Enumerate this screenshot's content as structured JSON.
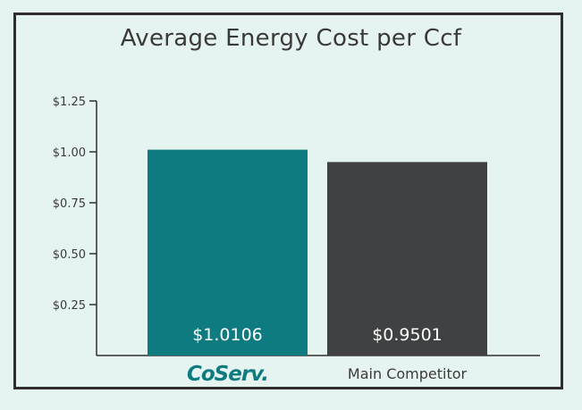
{
  "chart_data": {
    "type": "bar",
    "title": "Average Energy Cost per Ccf",
    "categories": [
      "CoServ.",
      "Main Competitor"
    ],
    "values": [
      1.0106,
      0.9501
    ],
    "value_labels": [
      "$1.0106",
      "$0.9501"
    ],
    "ylim": [
      0,
      1.25
    ],
    "yticks": [
      0.25,
      0.5,
      0.75,
      1.0,
      1.25
    ],
    "ytick_labels": [
      "$0.25",
      "$0.50",
      "$0.75",
      "$1.00",
      "$1.25"
    ],
    "grid": false,
    "colors": [
      "#0e7b80",
      "#404142"
    ]
  },
  "colors": {
    "background": "#e6f4f1",
    "frame": "#2e2e2e"
  }
}
